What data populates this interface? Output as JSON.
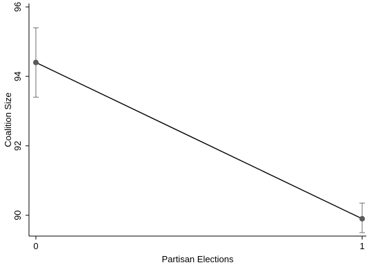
{
  "chart_data": {
    "type": "line",
    "title": "",
    "xlabel": "Partisan Elections",
    "ylabel": "Coalition Size",
    "x": [
      0,
      1
    ],
    "xticks": [
      0,
      1
    ],
    "xlim": [
      0,
      1
    ],
    "yticks": [
      90,
      92,
      94,
      96
    ],
    "ylim": [
      89.4,
      96.1
    ],
    "grid": false,
    "legend": "none",
    "series": [
      {
        "values": [
          94.4,
          89.9
        ],
        "ci_lower": [
          93.4,
          89.5
        ],
        "ci_upper": [
          95.4,
          90.35
        ],
        "line_color": "#000000",
        "marker_color": "#5a5a5a",
        "errorbar_color": "#6e6e6e"
      }
    ]
  }
}
